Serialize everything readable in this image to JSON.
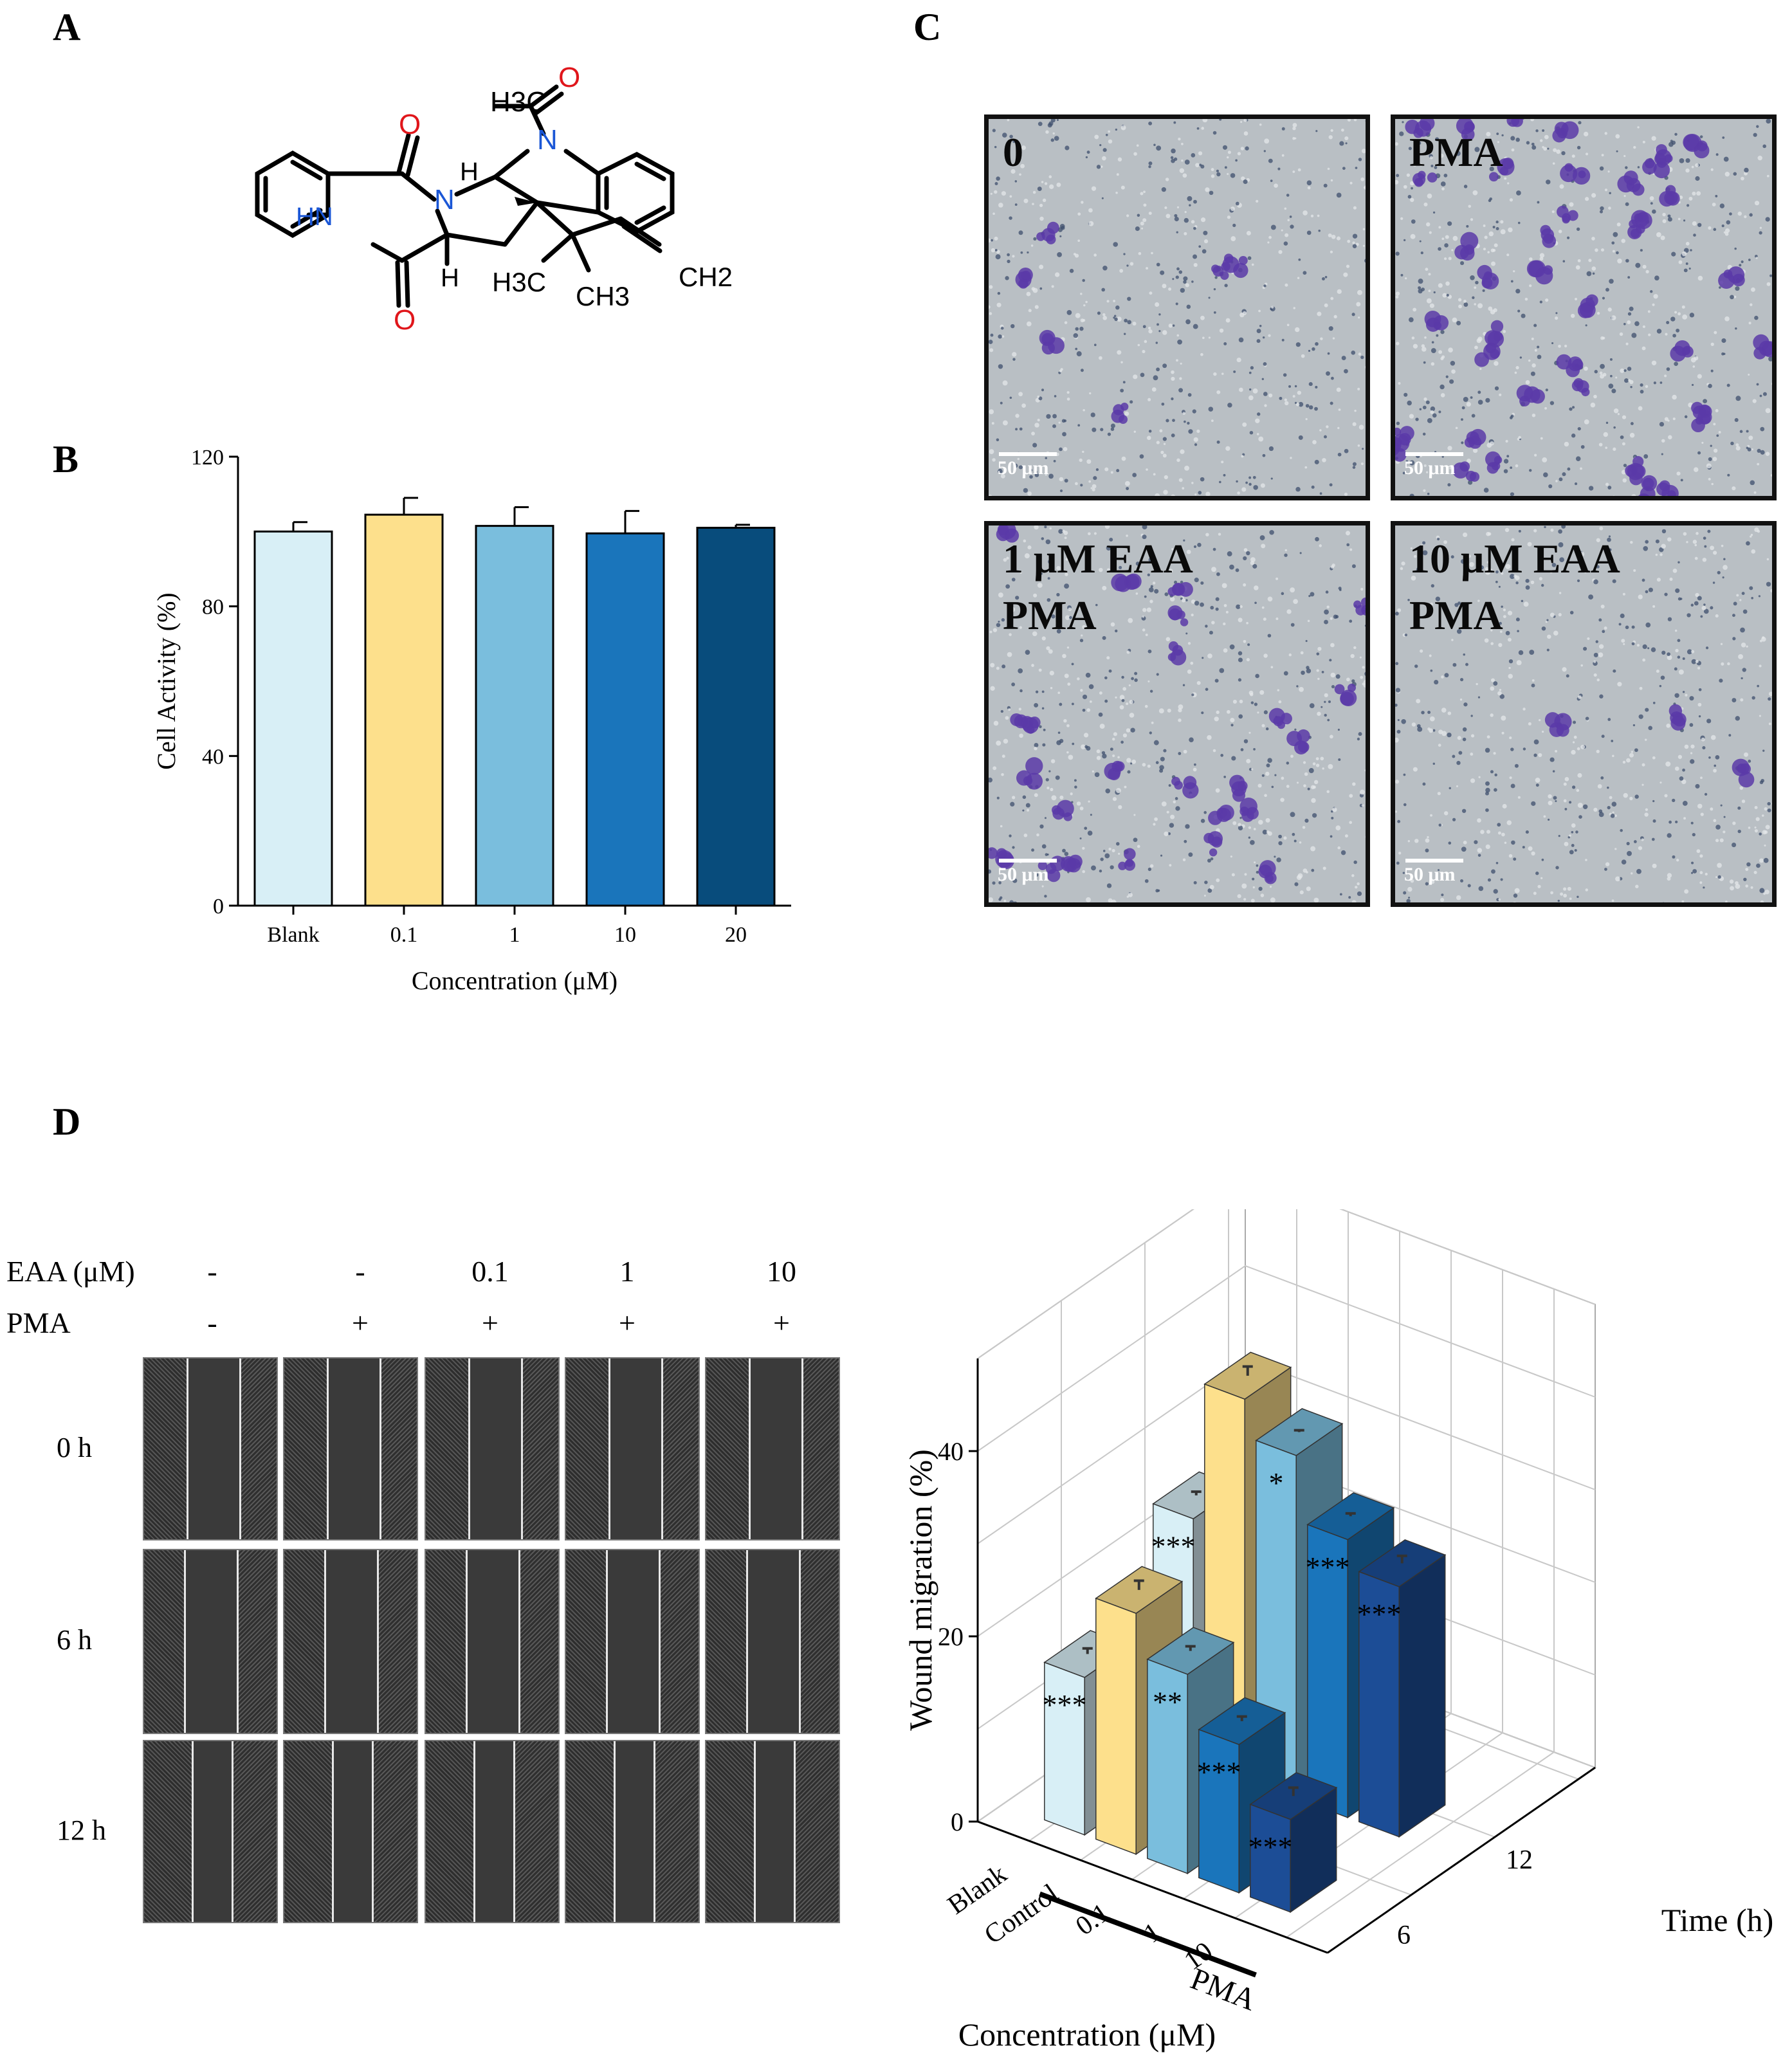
{
  "panels": {
    "a": "A",
    "b": "B",
    "c": "C",
    "d": "D"
  },
  "chem": {
    "atoms": {
      "h3c_top": "H3C",
      "o_top": "O",
      "o_left_top": "O",
      "n_top": "N",
      "n_mid": "N",
      "h_top": "H",
      "hn": "HN",
      "h_bottom": "H",
      "o_bottom": "O",
      "h3c_bottom": "H3C",
      "ch3": "CH3",
      "ch2": "CH2"
    },
    "colors": {
      "n": "#1a56d6",
      "o": "#e0161b",
      "bond": "#000000"
    }
  },
  "chart_data": [
    {
      "type": "bar",
      "panel": "B",
      "categories": [
        "Blank",
        "0.1",
        "1",
        "10",
        "20"
      ],
      "values": [
        100,
        104.5,
        101.5,
        99.5,
        101
      ],
      "errors": [
        2.5,
        4.5,
        5,
        6,
        0.8
      ],
      "colors": [
        "#d8eff6",
        "#fde08c",
        "#7abedd",
        "#1a75bb",
        "#084c7c"
      ],
      "xlabel": "Concentration (μM)",
      "ylabel": "Cell Activity (%)",
      "ylim": [
        0,
        120
      ],
      "yticks": [
        "0",
        "40",
        "80",
        "120"
      ]
    },
    {
      "type": "bar",
      "panel": "D",
      "categories": [
        "Blank",
        "Control",
        "0.1",
        "1",
        "10"
      ],
      "category_colors": [
        "#d8eff6",
        "#fde08c",
        "#7abedd",
        "#1a75bb",
        "#1c4d96"
      ],
      "group_label": "PMA",
      "series": [
        {
          "name": "6",
          "values": [
            17,
            26,
            21.5,
            16,
            10
          ],
          "significance": [
            "***",
            "",
            "**",
            "***",
            "***"
          ]
        },
        {
          "name": "12",
          "values": [
            26,
            41,
            37,
            30,
            27
          ],
          "significance": [
            "***",
            "",
            "*",
            "***",
            "***"
          ]
        }
      ],
      "xlabel": "Concentration (μM)",
      "ylabel": "Wound migration (%)",
      "zlabel": "Time (h)",
      "ylim": [
        0,
        50
      ],
      "yticks": [
        "0",
        "20",
        "40"
      ],
      "ztick_labels": [
        "6",
        "12"
      ],
      "grid": true
    }
  ],
  "micrographs": [
    {
      "label": "0",
      "scale": "50 μm",
      "density": 6
    },
    {
      "label": "PMA",
      "scale": "50 μm",
      "density": 40
    },
    {
      "label": "1 μM EAA\nPMA",
      "scale": "50 μm",
      "density": 24
    },
    {
      "label": "10 μM EAA\nPMA",
      "scale": "50 μm",
      "density": 3
    }
  ],
  "wound": {
    "header_eaa": "EAA (μM)",
    "header_pma": "PMA",
    "eaa_values": [
      "-",
      "-",
      "0.1",
      "1",
      "10"
    ],
    "pma_values": [
      "-",
      "+",
      "+",
      "+",
      "+"
    ],
    "rows": [
      "0 h",
      "6 h",
      "12 h"
    ]
  }
}
